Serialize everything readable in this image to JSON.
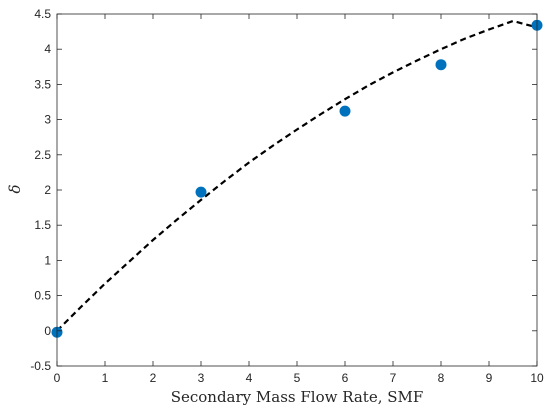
{
  "chart_data": {
    "type": "scatter",
    "xlabel": "Secondary Mass Flow Rate, SMF",
    "ylabel": "δ",
    "xlim": [
      0,
      10
    ],
    "ylim": [
      -0.5,
      4.5
    ],
    "xticks": [
      "0",
      "1",
      "2",
      "3",
      "4",
      "5",
      "6",
      "7",
      "8",
      "9",
      "10"
    ],
    "yticks": [
      "-0.5",
      "0",
      "0.5",
      "1",
      "1.5",
      "2",
      "2.5",
      "3",
      "3.5",
      "4",
      "4.5"
    ],
    "grid": false,
    "series": [
      {
        "type": "scatter",
        "color": "#0072BD",
        "points": [
          {
            "x": 0,
            "y": -0.02
          },
          {
            "x": 3,
            "y": 1.97
          },
          {
            "x": 6,
            "y": 3.12
          },
          {
            "x": 8,
            "y": 3.78
          },
          {
            "x": 10,
            "y": 4.34
          }
        ]
      },
      {
        "type": "line",
        "style": "dashed",
        "color": "#000000",
        "x": [
          0,
          0.5,
          1,
          1.5,
          2,
          2.5,
          3,
          3.5,
          4,
          4.5,
          5,
          5.5,
          6,
          6.5,
          7,
          7.5,
          8,
          8.5,
          9,
          9.5,
          10
        ],
        "y": [
          0.0,
          0.34,
          0.67,
          0.98,
          1.29,
          1.58,
          1.86,
          2.13,
          2.39,
          2.63,
          2.86,
          3.08,
          3.29,
          3.49,
          3.67,
          3.84,
          4.0,
          4.15,
          4.28,
          4.4,
          4.31
        ]
      }
    ]
  }
}
